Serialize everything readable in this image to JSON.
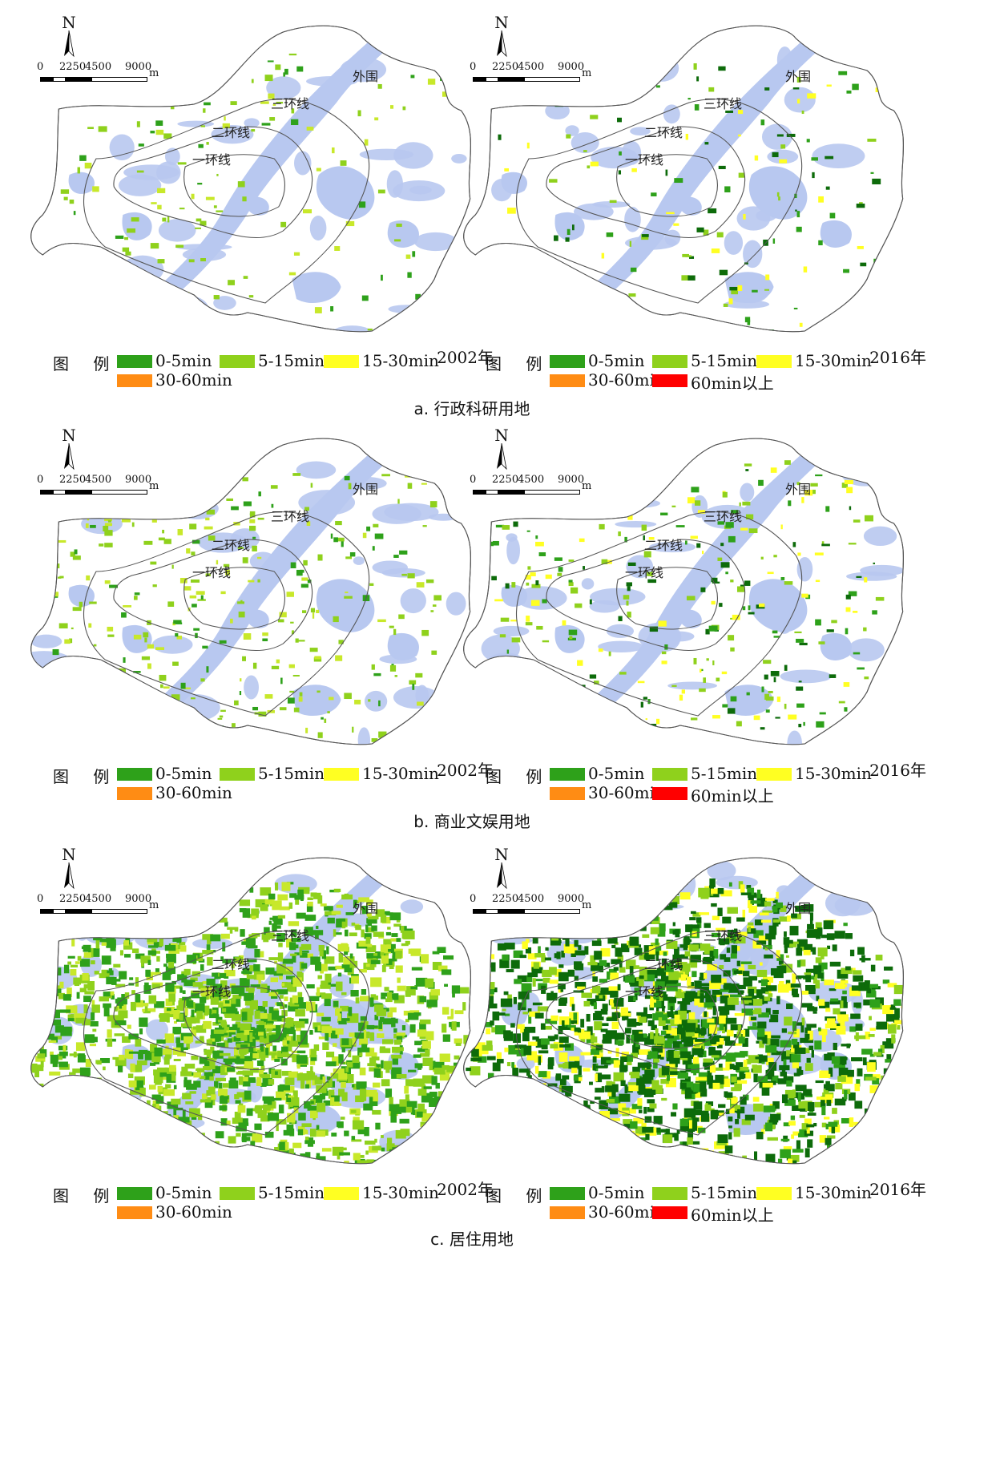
{
  "colors": {
    "water": "#b8c8f0",
    "boundary": "#555555",
    "c_0_5": "#2ea11a",
    "c_5_15": "#8fd11c",
    "c_15_30": "#ffff22",
    "c_30_60": "#ff8c14",
    "c_60plus": "#ff0000",
    "c_dark": "#0d6b0a"
  },
  "map_common": {
    "north_label": "N",
    "scale_labels": [
      "0",
      "2250",
      "4500",
      "9000"
    ],
    "scale_unit": "m",
    "ring_labels": {
      "outer": "外围",
      "ring3": "三环线",
      "ring2": "二环线",
      "ring1": "一环线"
    },
    "legend_title": "图 例"
  },
  "legend_2002": [
    {
      "label": "0-5min",
      "color": "#2ea11a"
    },
    {
      "label": "5-15min",
      "color": "#8fd11c"
    },
    {
      "label": "15-30min",
      "color": "#ffff22"
    },
    {
      "label": "30-60min",
      "color": "#ff8c14"
    }
  ],
  "legend_2016": [
    {
      "label": "0-5min",
      "color": "#2ea11a"
    },
    {
      "label": "5-15min",
      "color": "#8fd11c"
    },
    {
      "label": "15-30min",
      "color": "#ffff22"
    },
    {
      "label": "30-60min",
      "color": "#ff8c14"
    },
    {
      "label": "60min以上",
      "color": "#ff0000"
    }
  ],
  "sections": [
    {
      "caption": "a. 行政科研用地",
      "maps": [
        {
          "year": "2002年",
          "density": "sparse",
          "palette": "2002"
        },
        {
          "year": "2016年",
          "density": "sparse",
          "palette": "2016"
        }
      ]
    },
    {
      "caption": "b. 商业文娱用地",
      "maps": [
        {
          "year": "2002年",
          "density": "scattered",
          "palette": "2002"
        },
        {
          "year": "2016年",
          "density": "scattered",
          "palette": "2016"
        }
      ]
    },
    {
      "caption": "c. 居住用地",
      "maps": [
        {
          "year": "2002年",
          "density": "dense",
          "palette": "2002"
        },
        {
          "year": "2016年",
          "density": "dense",
          "palette": "2016"
        }
      ]
    }
  ]
}
